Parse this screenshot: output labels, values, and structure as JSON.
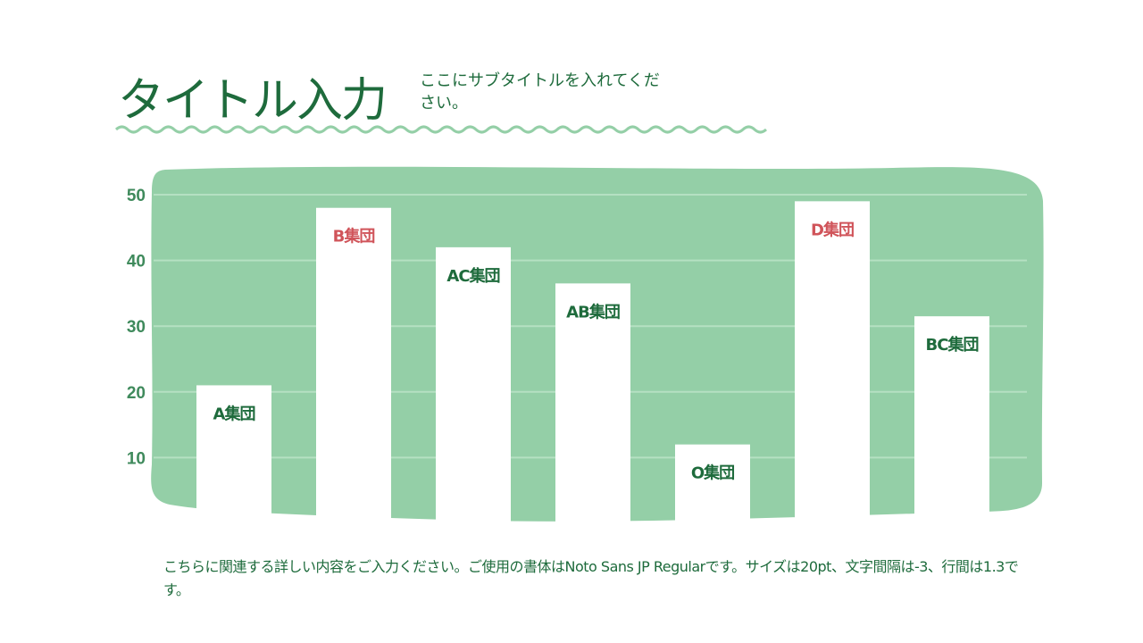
{
  "header": {
    "title": "タイトル入力",
    "subtitle": "ここにサブタイトルを入れてください。"
  },
  "description": "こちらに関連する詳しい内容をご入力ください。ご使用の書体はNoto Sans JP Regularです。サイズは20pt、文字間隔は-3、行間は1.3です。",
  "colors": {
    "primary": "#1e6b3c",
    "panel": "#94cfa7",
    "highlight": "#d0545a",
    "wave": "#94cfa7"
  },
  "chart_data": {
    "type": "bar",
    "categories": [
      "A集団",
      "B集団",
      "AC集団",
      "AB集団",
      "O集団",
      "D集団",
      "BC集団"
    ],
    "values": [
      21,
      48,
      42,
      36.5,
      12,
      49,
      31.5
    ],
    "label_colors": [
      "#1e6b3c",
      "#d0545a",
      "#1e6b3c",
      "#1e6b3c",
      "#1e6b3c",
      "#d0545a",
      "#1e6b3c"
    ],
    "yticks": [
      10,
      20,
      30,
      40,
      50
    ],
    "ylim": [
      0,
      50
    ],
    "grid": true,
    "title": "",
    "xlabel": "",
    "ylabel": ""
  }
}
